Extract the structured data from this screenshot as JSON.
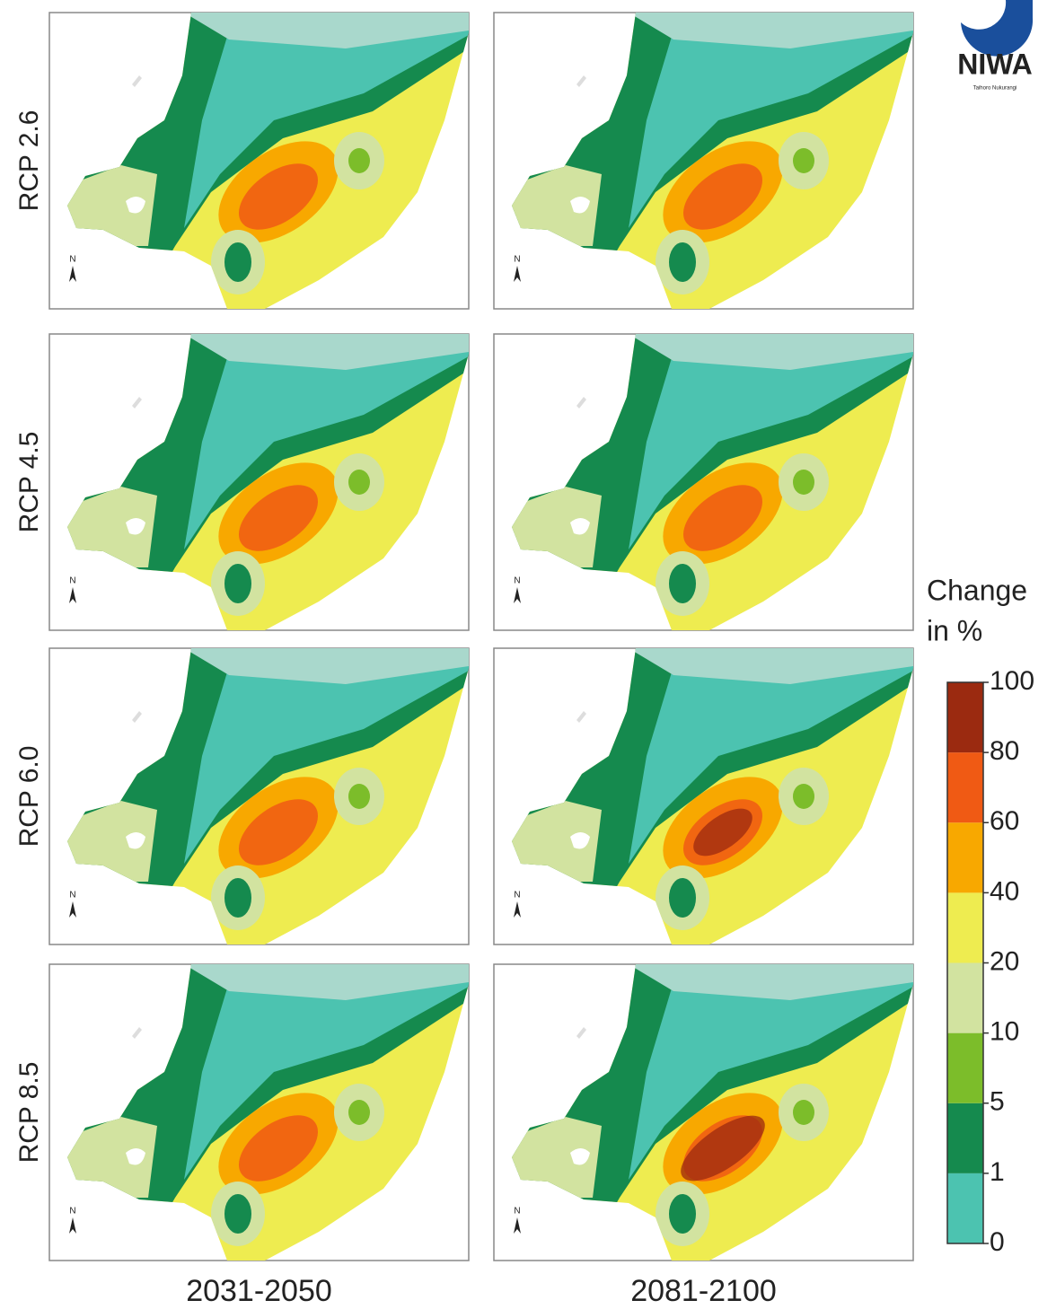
{
  "figure": {
    "rows": [
      "RCP 2.6",
      "RCP 4.5",
      "RCP 6.0",
      "RCP 8.5"
    ],
    "columns": [
      "2031-2050",
      "2081-2100"
    ],
    "north_label": "N",
    "logo": {
      "name": "NIWA",
      "subtitle": "Taihoro Nukurangi"
    },
    "legend": {
      "title": [
        "Change",
        "in %"
      ],
      "ticks": [
        0,
        1,
        5,
        10,
        20,
        40,
        60,
        80,
        100
      ],
      "colors": [
        "#4cc3b0",
        "#158a4e",
        "#7cbd2a",
        "#d2e3a0",
        "#eeec50",
        "#f8a800",
        "#f05a14",
        "#9b2a10"
      ]
    }
  }
}
